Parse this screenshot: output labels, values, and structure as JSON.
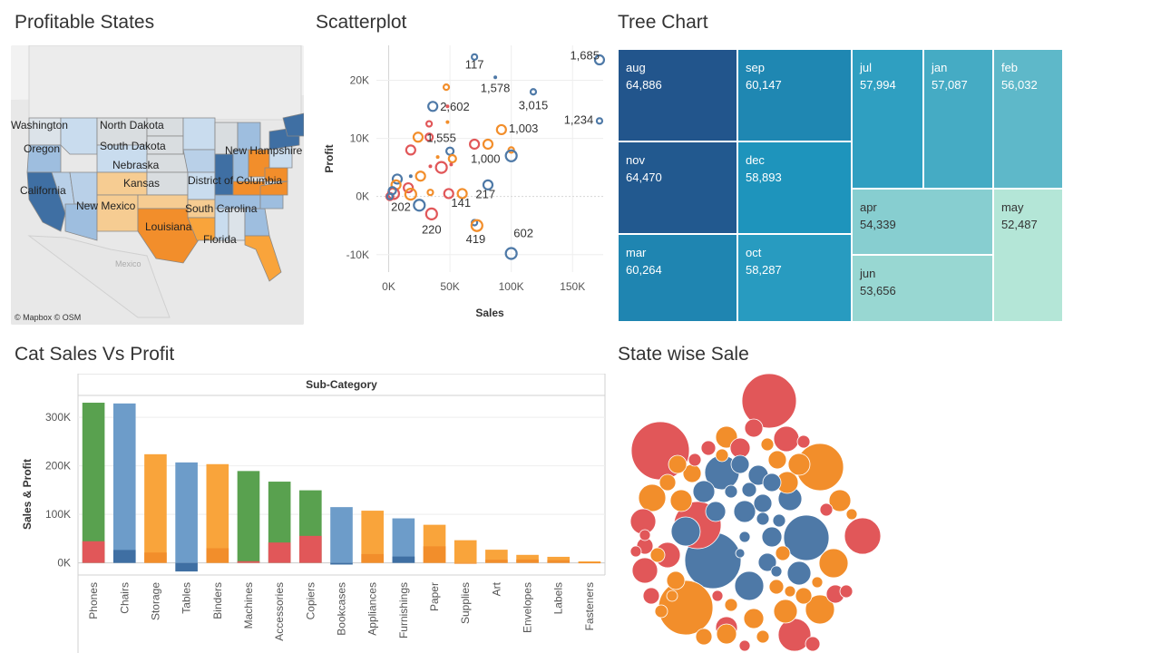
{
  "titles": {
    "map": "Profitable States",
    "scatter": "Scatterplot",
    "tree": "Tree Chart",
    "bar": "Cat Sales Vs Profit",
    "bubble": "State wise Sale"
  },
  "map": {
    "credit": "© Mapbox  © OSM",
    "country_label": "Mexico",
    "state_labels": [
      "Washington",
      "North Dakota",
      "Oregon",
      "South Dakota",
      "New Hampshire",
      "Nebraska",
      "Kansas",
      "District of Columbia",
      "California",
      "New Mexico",
      "South Carolina",
      "Louisiana",
      "Florida"
    ]
  },
  "colors": {
    "blue": "#4e79a7",
    "orange": "#f28e2b",
    "red": "#e15759",
    "green": "#59a14f",
    "lightblue": "#6d9cc9",
    "lightorange": "#f9a43b"
  },
  "chart_data": [
    {
      "type": "scatter",
      "title": "Scatterplot",
      "xlabel": "Sales",
      "ylabel": "Profit",
      "xticks": [
        "0K",
        "50K",
        "100K",
        "150K"
      ],
      "yticks": [
        "-10K",
        "0K",
        "10K",
        "20K"
      ],
      "xlim": [
        -10000,
        175000
      ],
      "ylim": [
        -13000,
        26000
      ],
      "labels": [
        {
          "text": "117",
          "x": 70000,
          "y": 22000
        },
        {
          "text": "1,685",
          "x": 160000,
          "y": 23600
        },
        {
          "text": "1,578",
          "x": 87000,
          "y": 18000
        },
        {
          "text": "3,015",
          "x": 118000,
          "y": 15000
        },
        {
          "text": "2,602",
          "x": 54000,
          "y": 14800
        },
        {
          "text": "1,234",
          "x": 155000,
          "y": 12500
        },
        {
          "text": "1,003",
          "x": 110000,
          "y": 11000
        },
        {
          "text": "1,555",
          "x": 43000,
          "y": 9400
        },
        {
          "text": "1,000",
          "x": 79000,
          "y": 5800
        },
        {
          "text": "217",
          "x": 79000,
          "y": -300
        },
        {
          "text": "141",
          "x": 59000,
          "y": -1800
        },
        {
          "text": "202",
          "x": 10000,
          "y": -2500
        },
        {
          "text": "220",
          "x": 35000,
          "y": -6400
        },
        {
          "text": "419",
          "x": 71000,
          "y": -8000
        },
        {
          "text": "602",
          "x": 110000,
          "y": -7000
        }
      ],
      "points": [
        {
          "x": 70000,
          "y": 24000,
          "c": "blue",
          "r": 3
        },
        {
          "x": 172000,
          "y": 23500,
          "c": "blue",
          "r": 5
        },
        {
          "x": 87000,
          "y": 20500,
          "c": "blue",
          "r": 2
        },
        {
          "x": 118000,
          "y": 18000,
          "c": "blue",
          "r": 3
        },
        {
          "x": 47000,
          "y": 18800,
          "c": "orange",
          "r": 3
        },
        {
          "x": 36000,
          "y": 15500,
          "c": "blue",
          "r": 5
        },
        {
          "x": 48000,
          "y": 15500,
          "c": "red",
          "r": 2
        },
        {
          "x": 172000,
          "y": 13000,
          "c": "blue",
          "r": 3
        },
        {
          "x": 33000,
          "y": 12500,
          "c": "red",
          "r": 3
        },
        {
          "x": 48000,
          "y": 12800,
          "c": "orange",
          "r": 2
        },
        {
          "x": 92000,
          "y": 11500,
          "c": "orange",
          "r": 5
        },
        {
          "x": 24000,
          "y": 10200,
          "c": "orange",
          "r": 5
        },
        {
          "x": 33000,
          "y": 10200,
          "c": "red",
          "r": 4
        },
        {
          "x": 70000,
          "y": 9000,
          "c": "red",
          "r": 5
        },
        {
          "x": 81000,
          "y": 9000,
          "c": "orange",
          "r": 5
        },
        {
          "x": 100000,
          "y": 8000,
          "c": "orange",
          "r": 3
        },
        {
          "x": 18000,
          "y": 8000,
          "c": "red",
          "r": 5
        },
        {
          "x": 50000,
          "y": 7800,
          "c": "blue",
          "r": 4
        },
        {
          "x": 100000,
          "y": 7000,
          "c": "blue",
          "r": 6
        },
        {
          "x": 40000,
          "y": 6800,
          "c": "orange",
          "r": 2
        },
        {
          "x": 52000,
          "y": 6500,
          "c": "orange",
          "r": 4
        },
        {
          "x": 34000,
          "y": 5200,
          "c": "red",
          "r": 2
        },
        {
          "x": 43000,
          "y": 5000,
          "c": "red",
          "r": 6
        },
        {
          "x": 51000,
          "y": 5500,
          "c": "red",
          "r": 2
        },
        {
          "x": 26000,
          "y": 3500,
          "c": "orange",
          "r": 5
        },
        {
          "x": 18000,
          "y": 3500,
          "c": "blue",
          "r": 2
        },
        {
          "x": 7000,
          "y": 3000,
          "c": "blue",
          "r": 5
        },
        {
          "x": 6000,
          "y": 2000,
          "c": "orange",
          "r": 5
        },
        {
          "x": 16000,
          "y": 1500,
          "c": "red",
          "r": 5
        },
        {
          "x": 81000,
          "y": 2000,
          "c": "blue",
          "r": 5
        },
        {
          "x": 4000,
          "y": 500,
          "c": "red",
          "r": 6
        },
        {
          "x": 1000,
          "y": 0,
          "c": "red",
          "r": 4
        },
        {
          "x": 1000,
          "y": 0,
          "c": "blue",
          "r": 3
        },
        {
          "x": 3000,
          "y": 1000,
          "c": "blue",
          "r": 4
        },
        {
          "x": 18000,
          "y": 400,
          "c": "orange",
          "r": 6
        },
        {
          "x": 34000,
          "y": 700,
          "c": "orange",
          "r": 3
        },
        {
          "x": 49000,
          "y": 500,
          "c": "red",
          "r": 5
        },
        {
          "x": 60000,
          "y": 500,
          "c": "orange",
          "r": 5
        },
        {
          "x": 25000,
          "y": -1500,
          "c": "blue",
          "r": 6
        },
        {
          "x": 35000,
          "y": -3000,
          "c": "red",
          "r": 6
        },
        {
          "x": 70000,
          "y": -4500,
          "c": "blue",
          "r": 3
        },
        {
          "x": 72000,
          "y": -5000,
          "c": "orange",
          "r": 6
        },
        {
          "x": 100000,
          "y": -9800,
          "c": "blue",
          "r": 6
        }
      ]
    },
    {
      "type": "treemap",
      "title": "Tree Chart",
      "items": [
        {
          "label": "aug",
          "value": 64886,
          "display": "64,886"
        },
        {
          "label": "nov",
          "value": 64470,
          "display": "64,470"
        },
        {
          "label": "mar",
          "value": 60264,
          "display": "60,264"
        },
        {
          "label": "sep",
          "value": 60147,
          "display": "60,147"
        },
        {
          "label": "dec",
          "value": 58893,
          "display": "58,893"
        },
        {
          "label": "oct",
          "value": 58287,
          "display": "58,287"
        },
        {
          "label": "jul",
          "value": 57994,
          "display": "57,994"
        },
        {
          "label": "jan",
          "value": 57087,
          "display": "57,087"
        },
        {
          "label": "feb",
          "value": 56032,
          "display": "56,032"
        },
        {
          "label": "apr",
          "value": 54339,
          "display": "54,339"
        },
        {
          "label": "jun",
          "value": 53656,
          "display": "53,656"
        },
        {
          "label": "may",
          "value": 52487,
          "display": "52,487"
        }
      ]
    },
    {
      "type": "bar",
      "title": "Cat Sales Vs Profit",
      "column_header": "Sub-Category",
      "ylabel": "Sales & Profit",
      "yticks": [
        "0K",
        "100K",
        "200K",
        "300K"
      ],
      "ylim": [
        -25000,
        345000
      ],
      "categories": [
        "Phones",
        "Chairs",
        "Storage",
        "Tables",
        "Binders",
        "Machines",
        "Accessories",
        "Copiers",
        "Bookcases",
        "Appliances",
        "Furnishings",
        "Paper",
        "Supplies",
        "Art",
        "Envelopes",
        "Labels",
        "Fasteners"
      ],
      "series": [
        {
          "name": "Sales",
          "values": [
            330007,
            328449,
            223844,
            206966,
            203413,
            189239,
            167380,
            149528,
            114880,
            107532,
            91705,
            78479,
            46674,
            27119,
            16476,
            12486,
            3024
          ]
        },
        {
          "name": "Profit",
          "values": [
            44516,
            26590,
            21279,
            -17725,
            30222,
            3385,
            41937,
            55618,
            -3473,
            18138,
            13059,
            34054,
            -1189,
            6528,
            6964,
            5546,
            950
          ]
        }
      ],
      "bar_colors": [
        "green",
        "lightblue",
        "lightorange",
        "lightblue",
        "lightorange",
        "green",
        "green",
        "green",
        "lightblue",
        "lightorange",
        "lightblue",
        "lightorange",
        "lightorange",
        "lightorange",
        "lightorange",
        "lightorange",
        "lightorange"
      ]
    }
  ]
}
